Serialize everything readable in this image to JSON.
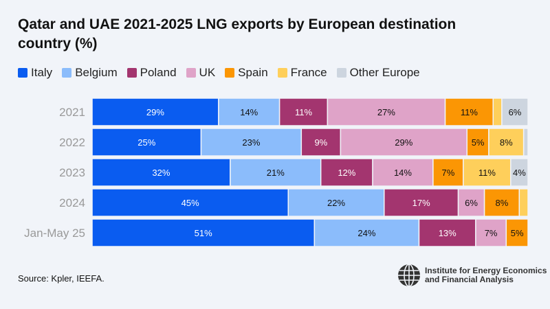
{
  "chart_data": {
    "type": "bar",
    "orientation": "horizontal-stacked-100",
    "title": "Qatar and UAE 2021-2025 LNG exports by European destination country (%)",
    "categories": [
      "2021",
      "2022",
      "2023",
      "2024",
      "Jan-May 25"
    ],
    "series": [
      {
        "name": "Italy",
        "color": "#0a5cf0",
        "values": [
          29,
          25,
          32,
          45,
          51
        ],
        "labels": [
          "29%",
          "25%",
          "32%",
          "45%",
          "51%"
        ],
        "text": "#fff"
      },
      {
        "name": "Belgium",
        "color": "#8bbcfb",
        "values": [
          14,
          23,
          21,
          22,
          24
        ],
        "labels": [
          "14%",
          "23%",
          "21%",
          "22%",
          "24%"
        ],
        "text": "#111"
      },
      {
        "name": "Poland",
        "color": "#a3356f",
        "values": [
          11,
          9,
          12,
          17,
          13
        ],
        "labels": [
          "11%",
          "9%",
          "12%",
          "17%",
          "13%"
        ],
        "text": "#fff"
      },
      {
        "name": "UK",
        "color": "#dfa3c8",
        "values": [
          27,
          29,
          14,
          6,
          7
        ],
        "labels": [
          "27%",
          "29%",
          "14%",
          "6%",
          "7%"
        ],
        "text": "#111"
      },
      {
        "name": "Spain",
        "color": "#fb9604",
        "values": [
          11,
          5,
          7,
          8,
          5
        ],
        "labels": [
          "11%",
          "5%",
          "7%",
          "8%",
          "5%"
        ],
        "text": "#111"
      },
      {
        "name": "France",
        "color": "#fecf5b",
        "values": [
          2,
          8,
          11,
          2,
          0
        ],
        "labels": [
          "",
          "8%",
          "11%",
          "",
          ""
        ],
        "text": "#111"
      },
      {
        "name": "Other Europe",
        "color": "#cdd5df",
        "values": [
          6,
          1,
          4,
          0,
          0
        ],
        "labels": [
          "6%",
          "",
          "4%",
          "",
          ""
        ],
        "text": "#111"
      }
    ],
    "xlim": [
      0,
      100
    ],
    "legend": "top"
  },
  "source": "Source: Kpler, IEEFA.",
  "logo": {
    "line1": "Institute for Energy Economics",
    "line2": "and Financial Analysis"
  }
}
